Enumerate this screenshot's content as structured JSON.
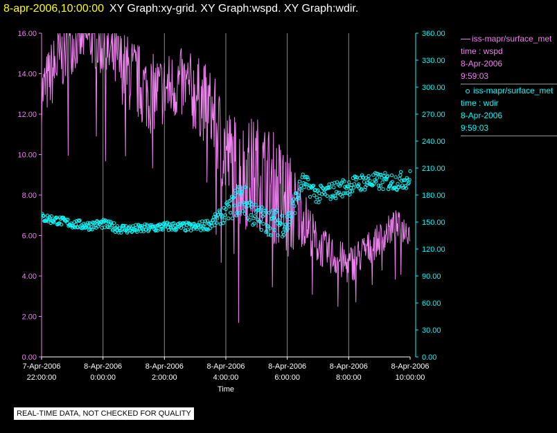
{
  "header": {
    "timestamp": "8-apr-2006,10:00:00",
    "title": "XY Graph:xy-grid.  XY Graph:wspd.  XY Graph:wdir."
  },
  "legend": [
    {
      "lines": [
        "iss-mapr/surface_met",
        "time : wspd",
        "8-Apr-2006",
        "9:59:03"
      ],
      "color": "#ee82ee",
      "marker": "line"
    },
    {
      "lines": [
        "iss-mapr/surface_met",
        "time : wdir",
        "8-Apr-2006",
        "9:59:03"
      ],
      "color": "#00ffff",
      "marker": "circle"
    }
  ],
  "footer": {
    "note": "REAL-TIME DATA, NOT CHECKED FOR QUALITY"
  },
  "chart_data": {
    "type": "line",
    "xlabel": "Time",
    "x_ticks": [
      [
        "7-Apr-2006",
        "22:00:00"
      ],
      [
        "8-Apr-2006",
        "0:00:00"
      ],
      [
        "8-Apr-2006",
        "2:00:00"
      ],
      [
        "8-Apr-2006",
        "4:00:00"
      ],
      [
        "8-Apr-2006",
        "6:00:00"
      ],
      [
        "8-Apr-2006",
        "8:00:00"
      ],
      [
        "8-Apr-2006",
        "10:00:00"
      ]
    ],
    "x_tick_hours": [
      -2,
      0,
      2,
      4,
      6,
      8,
      10
    ],
    "xlim": [
      -2,
      10
    ],
    "left_axis": {
      "ylim": [
        0,
        16
      ],
      "ticks": [
        "0.00",
        "2.00",
        "4.00",
        "6.00",
        "8.00",
        "10.00",
        "12.00",
        "14.00",
        "16.00"
      ],
      "color": "#ee82ee"
    },
    "right_axis": {
      "ylim": [
        0,
        360
      ],
      "ticks": [
        "0.00",
        "30.00",
        "60.00",
        "90.00",
        "120.00",
        "150.00",
        "180.00",
        "210.00",
        "240.00",
        "270.00",
        "300.00",
        "330.00",
        "360.00"
      ],
      "color": "#00ffff"
    },
    "grid": "vertical",
    "series": [
      {
        "axis": "left",
        "color": "#ee82ee",
        "style": "line",
        "x": [
          -2.0,
          -1.5,
          -1.0,
          -0.5,
          0.0,
          0.5,
          1.0,
          1.5,
          2.0,
          2.5,
          3.0,
          3.5,
          4.0,
          4.5,
          5.0,
          5.5,
          6.0,
          6.5,
          7.0,
          7.5,
          8.0,
          8.5,
          9.0,
          9.5,
          10.0
        ],
        "y": [
          13.0,
          14.5,
          15.5,
          15.8,
          15.2,
          14.5,
          13.8,
          13.0,
          13.2,
          13.5,
          13.0,
          12.3,
          10.0,
          9.0,
          9.2,
          8.5,
          7.5,
          7.0,
          5.5,
          5.0,
          4.5,
          5.2,
          5.8,
          6.5,
          6.2
        ],
        "amplitude": [
          1.5,
          1.8,
          1.5,
          1.2,
          1.5,
          1.8,
          2.0,
          2.0,
          1.8,
          1.8,
          2.0,
          2.0,
          2.5,
          2.8,
          2.8,
          2.8,
          3.0,
          1.5,
          1.0,
          1.0,
          1.0,
          0.9,
          0.8,
          0.8,
          0.7
        ]
      },
      {
        "axis": "right",
        "color": "#00ffff",
        "style": "scatter",
        "x": [
          -2.0,
          -1.5,
          -1.0,
          -0.5,
          0.0,
          0.5,
          1.0,
          1.5,
          2.0,
          2.5,
          3.0,
          3.5,
          4.0,
          4.5,
          5.0,
          5.5,
          6.0,
          6.5,
          7.0,
          7.5,
          8.0,
          8.5,
          9.0,
          9.5,
          10.0
        ],
        "y": [
          155,
          152,
          148,
          146,
          148,
          143,
          142,
          143,
          145,
          145,
          144,
          148,
          160,
          178,
          155,
          150,
          148,
          195,
          180,
          185,
          190,
          195,
          195,
          195,
          198
        ],
        "spread": [
          5,
          5,
          5,
          5,
          5,
          5,
          5,
          5,
          5,
          5,
          5,
          6,
          10,
          20,
          15,
          15,
          15,
          10,
          10,
          10,
          10,
          10,
          10,
          10,
          10
        ]
      }
    ]
  }
}
